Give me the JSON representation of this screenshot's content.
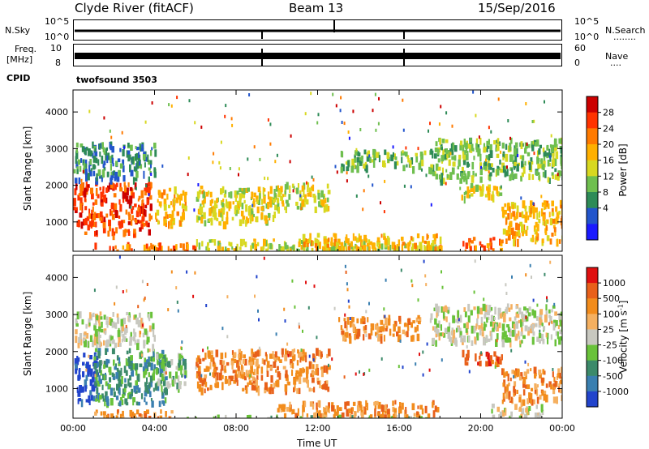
{
  "header": {
    "station": "Clyde River (fitACF)",
    "beam": "Beam 13",
    "date": "15/Sep/2016"
  },
  "strip_nsky": {
    "left_label": "N.Sky",
    "right_label": "N.Search",
    "ticks_left": [
      "10^5",
      "10^0"
    ],
    "ticks_right": [
      "10^5",
      "10^0"
    ],
    "right_dots": "........"
  },
  "strip_freq": {
    "left_label_1": "Freq.",
    "left_label_2": "[MHz]",
    "ticks_left": [
      "10",
      "8"
    ],
    "right_label": "Nave",
    "ticks_right": [
      "60",
      "0"
    ],
    "right_dots": "...."
  },
  "cpid": {
    "label": "CPID",
    "value": "twofsound 3503"
  },
  "chart_data": [
    {
      "type": "heatmap",
      "name": "power",
      "ylabel": "Slant Range [km]",
      "yticks": [
        "4000",
        "3000",
        "2000",
        "1000"
      ],
      "ylim": [
        200,
        4600
      ],
      "xlim": [
        0,
        24
      ],
      "colorbar": {
        "label": "Power [dB]",
        "ticks": [
          "28",
          "24",
          "20",
          "16",
          "12",
          "8",
          "4"
        ],
        "colors": [
          "#1a1aff",
          "#2255cc",
          "#2e8b57",
          "#6fbf4f",
          "#d8d820",
          "#ffb000",
          "#ff7a00",
          "#ff3300",
          "#cc0000"
        ]
      },
      "regions": [
        {
          "t0": 0.0,
          "t1": 3.8,
          "r0": 700,
          "r1": 2100,
          "level": 7
        },
        {
          "t0": 0.0,
          "t1": 4.0,
          "r0": 2200,
          "r1": 3200,
          "level": 2
        },
        {
          "t0": 4.0,
          "t1": 5.5,
          "r0": 1000,
          "r1": 2000,
          "level": 5
        },
        {
          "t0": 6.0,
          "t1": 10.0,
          "r0": 1000,
          "r1": 2000,
          "level": 4
        },
        {
          "t0": 9.5,
          "t1": 12.5,
          "r0": 1400,
          "r1": 2100,
          "level": 4
        },
        {
          "t0": 1.0,
          "t1": 6.0,
          "r0": 250,
          "r1": 450,
          "level": 6
        },
        {
          "t0": 6.0,
          "t1": 18.0,
          "r0": 250,
          "r1": 550,
          "level": 4
        },
        {
          "t0": 11.0,
          "t1": 18.0,
          "r0": 300,
          "r1": 700,
          "level": 5
        },
        {
          "t0": 13.0,
          "t1": 17.5,
          "r0": 2500,
          "r1": 3000,
          "level": 3
        },
        {
          "t0": 17.5,
          "t1": 24.0,
          "r0": 2200,
          "r1": 3300,
          "level": 3
        },
        {
          "t0": 19.0,
          "t1": 21.0,
          "r0": 1700,
          "r1": 2100,
          "level": 4
        },
        {
          "t0": 21.0,
          "t1": 24.0,
          "r0": 500,
          "r1": 1600,
          "level": 5
        },
        {
          "t0": 19.0,
          "t1": 21.0,
          "r0": 250,
          "r1": 600,
          "level": 6
        }
      ]
    },
    {
      "type": "heatmap",
      "name": "velocity",
      "ylabel": "Slant Range [km]",
      "yticks": [
        "4000",
        "3000",
        "2000",
        "1000"
      ],
      "ylim": [
        200,
        4600
      ],
      "xlim": [
        0,
        24
      ],
      "xticks": [
        "00:00",
        "04:00",
        "08:00",
        "12:00",
        "16:00",
        "20:00",
        "00:00"
      ],
      "xlabel": "Time UT",
      "colorbar": {
        "label": "Velocity [m s",
        "label_sup": "-1",
        "label_end": "]",
        "ticks": [
          "1000",
          "500",
          "100",
          "25",
          "-25",
          "-100",
          "-500",
          "-1000"
        ],
        "colors": [
          "#2244cc",
          "#3a7fb0",
          "#3c8a6a",
          "#69c23a",
          "#c8c8c0",
          "#f5b060",
          "#f28c1c",
          "#e8601a",
          "#e01010"
        ]
      },
      "regions": [
        {
          "t0": 0.0,
          "t1": 1.2,
          "r0": 700,
          "r1": 2000,
          "level": 0
        },
        {
          "t0": 1.0,
          "t1": 4.5,
          "r0": 600,
          "r1": 2100,
          "level": 2
        },
        {
          "t0": 0.0,
          "t1": 4.0,
          "r0": 2200,
          "r1": 3100,
          "level": 4
        },
        {
          "t0": 4.0,
          "t1": 5.5,
          "r0": 1000,
          "r1": 2000,
          "level": 3
        },
        {
          "t0": 6.0,
          "t1": 12.5,
          "r0": 1000,
          "r1": 2100,
          "level": 6
        },
        {
          "t0": 1.0,
          "t1": 5.5,
          "r0": 250,
          "r1": 450,
          "level": 6
        },
        {
          "t0": 5.5,
          "t1": 18.0,
          "r0": 200,
          "r1": 300,
          "level": 3
        },
        {
          "t0": 10.0,
          "t1": 18.0,
          "r0": 300,
          "r1": 700,
          "level": 6
        },
        {
          "t0": 13.0,
          "t1": 17.0,
          "r0": 2400,
          "r1": 3000,
          "level": 6
        },
        {
          "t0": 17.5,
          "t1": 24.0,
          "r0": 2300,
          "r1": 3300,
          "level": 4
        },
        {
          "t0": 19.0,
          "t1": 21.0,
          "r0": 1700,
          "r1": 2100,
          "level": 7
        },
        {
          "t0": 21.0,
          "t1": 24.0,
          "r0": 700,
          "r1": 1600,
          "level": 6
        },
        {
          "t0": 20.5,
          "t1": 23.0,
          "r0": 250,
          "r1": 600,
          "level": 4
        }
      ]
    }
  ]
}
